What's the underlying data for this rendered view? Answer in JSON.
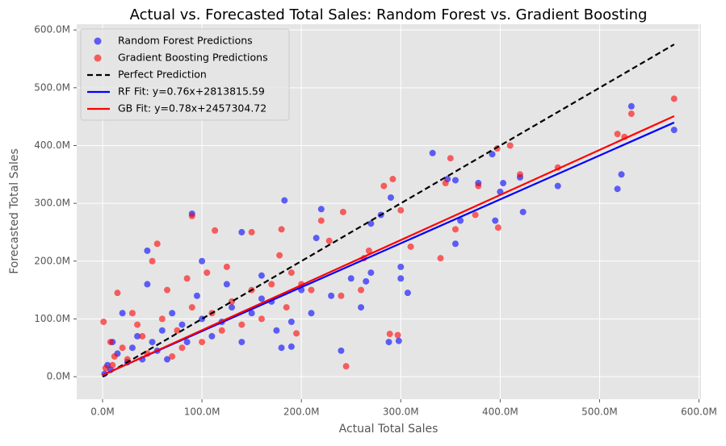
{
  "chart_data": {
    "type": "scatter",
    "title": "Actual vs. Forecasted Total Sales: Random Forest vs. Gradient Boosting",
    "xlabel": "Actual Total Sales",
    "ylabel": "Forecasted Total Sales",
    "xlim": [
      -26,
      602
    ],
    "ylim": [
      -39,
      610
    ],
    "xticks": [
      {
        "value": 0,
        "label": "0.0M"
      },
      {
        "value": 100,
        "label": "100.0M"
      },
      {
        "value": 200,
        "label": "200.0M"
      },
      {
        "value": 300,
        "label": "300.0M"
      },
      {
        "value": 400,
        "label": "400.0M"
      },
      {
        "value": 500,
        "label": "500.0M"
      },
      {
        "value": 600,
        "label": "600.0M"
      }
    ],
    "yticks": [
      {
        "value": 0,
        "label": "0.0M"
      },
      {
        "value": 100,
        "label": "100.0M"
      },
      {
        "value": 200,
        "label": "200.0M"
      },
      {
        "value": 300,
        "label": "300.0M"
      },
      {
        "value": 400,
        "label": "400.0M"
      },
      {
        "value": 500,
        "label": "500.0M"
      },
      {
        "value": 600,
        "label": "600.0M"
      }
    ],
    "grid": true,
    "legend": "upper left",
    "series": [
      {
        "name": "Random Forest Predictions",
        "type": "scatter",
        "color": "#0000ff",
        "alpha": 0.6,
        "x": [
          575,
          532,
          522,
          518,
          458,
          423,
          420,
          403,
          400,
          392,
          395,
          378,
          360,
          355,
          355,
          347,
          332,
          307,
          300,
          298,
          290,
          288,
          280,
          270,
          265,
          240,
          220,
          215,
          183,
          180,
          190,
          160,
          140,
          90,
          100,
          45,
          45,
          20,
          10,
          5,
          2,
          15,
          30,
          50,
          60,
          80,
          70,
          100,
          120,
          110,
          40,
          25,
          8,
          35,
          55,
          130,
          150,
          170,
          200,
          230,
          250,
          260,
          270,
          300,
          210,
          190,
          85,
          65,
          95,
          125,
          160,
          175,
          140
        ],
        "values": [
          427,
          468,
          350,
          325,
          330,
          285,
          345,
          335,
          320,
          385,
          270,
          335,
          270,
          340,
          230,
          342,
          387,
          145,
          170,
          62,
          310,
          60,
          280,
          265,
          165,
          45,
          290,
          240,
          305,
          50,
          52,
          135,
          250,
          282,
          200,
          218,
          160,
          110,
          60,
          20,
          5,
          40,
          50,
          60,
          80,
          90,
          110,
          100,
          95,
          70,
          30,
          25,
          12,
          70,
          45,
          120,
          110,
          130,
          150,
          140,
          170,
          120,
          180,
          190,
          110,
          95,
          60,
          30,
          140,
          160,
          175,
          80,
          60
        ]
      },
      {
        "name": "Gradient Boosting Predictions",
        "type": "scatter",
        "color": "#ff0000",
        "alpha": 0.6,
        "x": [
          575,
          532,
          518,
          525,
          458,
          420,
          410,
          397,
          398,
          375,
          378,
          350,
          345,
          355,
          340,
          310,
          300,
          297,
          289,
          292,
          283,
          268,
          263,
          245,
          242,
          228,
          220,
          200,
          180,
          178,
          150,
          113,
          90,
          55,
          50,
          30,
          15,
          8,
          3,
          1,
          20,
          40,
          60,
          75,
          90,
          110,
          130,
          150,
          170,
          190,
          210,
          100,
          120,
          80,
          45,
          25,
          10,
          140,
          160,
          185,
          195,
          35,
          65,
          85,
          105,
          125,
          70,
          240,
          260,
          12
        ],
        "values": [
          481,
          455,
          420,
          415,
          362,
          350,
          400,
          395,
          258,
          280,
          330,
          378,
          335,
          255,
          205,
          225,
          288,
          72,
          74,
          342,
          330,
          218,
          205,
          18,
          285,
          235,
          270,
          160,
          255,
          210,
          250,
          253,
          278,
          230,
          200,
          110,
          145,
          60,
          15,
          95,
          50,
          70,
          100,
          80,
          120,
          110,
          130,
          150,
          160,
          180,
          150,
          60,
          80,
          50,
          40,
          30,
          20,
          90,
          100,
          120,
          75,
          90,
          150,
          170,
          180,
          190,
          35,
          140,
          150,
          35
        ]
      },
      {
        "name": "Perfect Prediction",
        "type": "line",
        "color": "#000000",
        "linestyle": "dashed",
        "x": [
          0,
          575
        ],
        "values": [
          0,
          575
        ]
      },
      {
        "name": "RF Fit: y=0.76x+2813815.59",
        "type": "line",
        "color": "#0000ff",
        "linestyle": "solid",
        "x": [
          0,
          575
        ],
        "values": [
          2.81381559,
          439.81381559
        ]
      },
      {
        "name": "GB Fit: y=0.78x+2457304.72",
        "type": "line",
        "color": "#ff0000",
        "linestyle": "solid",
        "x": [
          0,
          575
        ],
        "values": [
          2.45730472,
          450.95730472
        ]
      }
    ]
  }
}
